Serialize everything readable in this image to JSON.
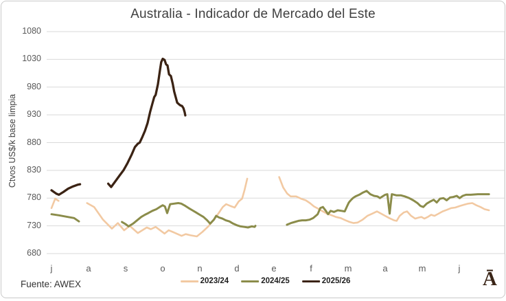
{
  "title": "Australia - Indicador de Mercado del Este",
  "footer": {
    "source": "Fuente: AWEX",
    "logo_glyph": "Ā"
  },
  "colors": {
    "background": "#ffffff",
    "card_border": "#c9c9c9",
    "grid": "#d9d9d9",
    "title_text": "#3f3f3f",
    "tick_text": "#595959",
    "logo": "#3a2517"
  },
  "chart_data": {
    "type": "line",
    "title": "Australia - Indicador de Mercado del Este",
    "ylabel": "Ctvos US$/k base limpia",
    "ylim": [
      680,
      1080
    ],
    "yticks": [
      680,
      730,
      780,
      830,
      880,
      930,
      980,
      1030,
      1080
    ],
    "grid": "horizontal",
    "legend_position": "bottom",
    "x_unit": "months since start of season (July=0, June=11); gaps = auction recess",
    "x_labels": [
      "j",
      "a",
      "s",
      "o",
      "n",
      "d",
      "e",
      "f",
      "m",
      "a",
      "m",
      "j"
    ],
    "series": [
      {
        "name": "2023/24",
        "color": "#f2c9a2",
        "segments": [
          [
            [
              0.0,
              762
            ],
            [
              0.1,
              779
            ],
            [
              0.19,
              775
            ]
          ],
          [
            [
              0.96,
              771
            ],
            [
              1.15,
              764
            ],
            [
              1.39,
              741
            ],
            [
              1.63,
              725
            ],
            [
              1.79,
              735
            ],
            [
              1.96,
              722
            ],
            [
              2.11,
              730
            ],
            [
              2.33,
              717
            ],
            [
              2.57,
              727
            ],
            [
              2.68,
              724
            ],
            [
              2.81,
              728
            ],
            [
              3.05,
              716
            ],
            [
              3.16,
              722
            ],
            [
              3.27,
              719
            ],
            [
              3.51,
              712
            ],
            [
              3.62,
              715
            ],
            [
              3.75,
              713
            ],
            [
              3.92,
              711
            ],
            [
              4.07,
              719
            ],
            [
              4.23,
              729
            ],
            [
              4.38,
              741
            ],
            [
              4.51,
              753
            ],
            [
              4.62,
              764
            ],
            [
              4.71,
              769
            ],
            [
              4.82,
              766
            ],
            [
              4.94,
              763
            ],
            [
              5.05,
              774
            ],
            [
              5.14,
              779
            ],
            [
              5.21,
              795
            ],
            [
              5.28,
              815
            ]
          ],
          [
            [
              6.14,
              818
            ],
            [
              6.25,
              799
            ],
            [
              6.36,
              788
            ],
            [
              6.45,
              783
            ],
            [
              6.6,
              783
            ],
            [
              6.73,
              779
            ],
            [
              6.86,
              776
            ],
            [
              6.97,
              771
            ],
            [
              7.08,
              765
            ],
            [
              7.19,
              761
            ],
            [
              7.32,
              756
            ],
            [
              7.43,
              752
            ],
            [
              7.56,
              749
            ],
            [
              7.67,
              746
            ],
            [
              7.8,
              744
            ],
            [
              7.93,
              740
            ],
            [
              8.04,
              737
            ],
            [
              8.15,
              735
            ],
            [
              8.26,
              736
            ],
            [
              8.39,
              741
            ],
            [
              8.52,
              748
            ],
            [
              8.65,
              752
            ],
            [
              8.78,
              756
            ],
            [
              8.89,
              752
            ],
            [
              9.0,
              748
            ],
            [
              9.11,
              744
            ],
            [
              9.24,
              740
            ],
            [
              9.31,
              739
            ],
            [
              9.39,
              748
            ],
            [
              9.5,
              754
            ],
            [
              9.59,
              756
            ],
            [
              9.7,
              748
            ],
            [
              9.81,
              743
            ],
            [
              9.91,
              745
            ],
            [
              9.98,
              746
            ],
            [
              10.06,
              743
            ],
            [
              10.15,
              746
            ],
            [
              10.24,
              750
            ],
            [
              10.33,
              748
            ],
            [
              10.44,
              752
            ],
            [
              10.55,
              756
            ],
            [
              10.67,
              759
            ],
            [
              10.78,
              762
            ],
            [
              10.89,
              763
            ],
            [
              11.02,
              766
            ],
            [
              11.13,
              768
            ],
            [
              11.24,
              770
            ],
            [
              11.35,
              771
            ],
            [
              11.46,
              767
            ],
            [
              11.57,
              764
            ],
            [
              11.68,
              760
            ],
            [
              11.8,
              758
            ]
          ]
        ]
      },
      {
        "name": "2024/25",
        "color": "#8b8c4a",
        "segments": [
          [
            [
              0.0,
              751
            ],
            [
              0.2,
              749
            ],
            [
              0.44,
              746
            ],
            [
              0.61,
              744
            ],
            [
              0.74,
              738
            ]
          ],
          [
            [
              1.9,
              737
            ],
            [
              2.0,
              733
            ],
            [
              2.08,
              729
            ],
            [
              2.2,
              734
            ],
            [
              2.31,
              740
            ],
            [
              2.42,
              746
            ],
            [
              2.52,
              750
            ],
            [
              2.61,
              753
            ],
            [
              2.72,
              757
            ],
            [
              2.83,
              760
            ],
            [
              2.92,
              764
            ],
            [
              3.0,
              767
            ],
            [
              3.06,
              765
            ],
            [
              3.12,
              753
            ],
            [
              3.2,
              769
            ],
            [
              3.31,
              770
            ],
            [
              3.42,
              771
            ],
            [
              3.5,
              770
            ],
            [
              3.61,
              766
            ],
            [
              3.7,
              762
            ],
            [
              3.8,
              758
            ],
            [
              3.9,
              754
            ],
            [
              4.0,
              750
            ],
            [
              4.1,
              746
            ],
            [
              4.2,
              740
            ],
            [
              4.28,
              734
            ],
            [
              4.38,
              741
            ],
            [
              4.44,
              748
            ],
            [
              4.52,
              745
            ],
            [
              4.61,
              743
            ],
            [
              4.7,
              740
            ],
            [
              4.8,
              738
            ],
            [
              4.9,
              734
            ],
            [
              5.0,
              731
            ],
            [
              5.1,
              729
            ],
            [
              5.2,
              728
            ],
            [
              5.3,
              727
            ],
            [
              5.4,
              729
            ],
            [
              5.48,
              728
            ],
            [
              5.5,
              730
            ]
          ],
          [
            [
              6.35,
              732
            ],
            [
              6.46,
              735
            ],
            [
              6.56,
              737
            ],
            [
              6.66,
              739
            ],
            [
              6.76,
              740
            ],
            [
              6.86,
              740
            ],
            [
              6.96,
              741
            ],
            [
              7.06,
              744
            ],
            [
              7.18,
              751
            ],
            [
              7.25,
              762
            ],
            [
              7.32,
              764
            ],
            [
              7.4,
              757
            ],
            [
              7.46,
              751
            ],
            [
              7.53,
              757
            ],
            [
              7.62,
              755
            ],
            [
              7.72,
              758
            ],
            [
              7.82,
              757
            ],
            [
              7.91,
              756
            ],
            [
              7.97,
              765
            ],
            [
              8.02,
              772
            ],
            [
              8.07,
              776
            ],
            [
              8.13,
              780
            ],
            [
              8.2,
              783
            ],
            [
              8.3,
              786
            ],
            [
              8.4,
              790
            ],
            [
              8.5,
              793
            ],
            [
              8.6,
              787
            ],
            [
              8.7,
              784
            ],
            [
              8.79,
              783
            ],
            [
              8.86,
              780
            ],
            [
              8.93,
              783
            ],
            [
              9.0,
              786
            ],
            [
              9.06,
              787
            ],
            [
              9.12,
              752
            ],
            [
              9.18,
              787
            ],
            [
              9.3,
              785
            ],
            [
              9.42,
              785
            ],
            [
              9.53,
              783
            ],
            [
              9.65,
              780
            ],
            [
              9.76,
              776
            ],
            [
              9.87,
              771
            ],
            [
              9.95,
              766
            ],
            [
              10.03,
              764
            ],
            [
              10.12,
              770
            ],
            [
              10.22,
              774
            ],
            [
              10.31,
              777
            ],
            [
              10.39,
              772
            ],
            [
              10.48,
              779
            ],
            [
              10.57,
              780
            ],
            [
              10.66,
              776
            ],
            [
              10.75,
              781
            ],
            [
              10.84,
              782
            ],
            [
              10.93,
              784
            ],
            [
              11.01,
              780
            ],
            [
              11.09,
              784
            ],
            [
              11.18,
              786
            ],
            [
              11.31,
              786
            ],
            [
              11.5,
              787
            ],
            [
              11.8,
              787
            ]
          ]
        ]
      },
      {
        "name": "2025/26",
        "color": "#3b2314",
        "segments": [
          [
            [
              0.0,
              794
            ],
            [
              0.13,
              788
            ],
            [
              0.2,
              786
            ],
            [
              0.32,
              791
            ],
            [
              0.45,
              797
            ],
            [
              0.58,
              801
            ],
            [
              0.7,
              804
            ],
            [
              0.77,
              805
            ]
          ],
          [
            [
              1.53,
              806
            ],
            [
              1.61,
              800
            ],
            [
              1.72,
              810
            ],
            [
              1.83,
              820
            ],
            [
              1.94,
              830
            ],
            [
              2.05,
              843
            ],
            [
              2.16,
              858
            ],
            [
              2.25,
              872
            ],
            [
              2.33,
              878
            ],
            [
              2.38,
              880
            ],
            [
              2.45,
              890
            ],
            [
              2.52,
              901
            ],
            [
              2.59,
              915
            ],
            [
              2.66,
              935
            ],
            [
              2.72,
              950
            ],
            [
              2.77,
              962
            ],
            [
              2.81,
              966
            ],
            [
              2.87,
              985
            ],
            [
              2.92,
              1008
            ],
            [
              2.96,
              1025
            ],
            [
              3.0,
              1031
            ],
            [
              3.05,
              1029
            ],
            [
              3.09,
              1021
            ],
            [
              3.13,
              1019
            ],
            [
              3.17,
              1003
            ],
            [
              3.22,
              1000
            ],
            [
              3.27,
              986
            ],
            [
              3.31,
              972
            ],
            [
              3.35,
              962
            ],
            [
              3.39,
              952
            ],
            [
              3.44,
              949
            ],
            [
              3.48,
              947
            ],
            [
              3.52,
              946
            ],
            [
              3.56,
              942
            ],
            [
              3.59,
              935
            ],
            [
              3.61,
              929
            ]
          ]
        ]
      }
    ]
  }
}
